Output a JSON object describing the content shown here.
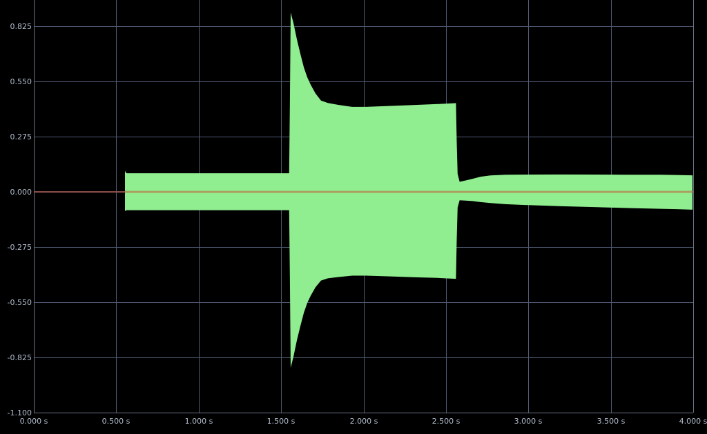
{
  "viewer": {
    "kind": "audio-waveform-display"
  },
  "chart_data": {
    "type": "area",
    "title": "",
    "xlabel": "",
    "ylabel": "",
    "x_unit": "s",
    "xlim": [
      0,
      4
    ],
    "ylim": [
      -1.1,
      0.956
    ],
    "grid": true,
    "legend": "none",
    "x_ticks": [
      {
        "value": 0.0,
        "label": "0.000 s"
      },
      {
        "value": 0.5,
        "label": "0.500 s"
      },
      {
        "value": 1.0,
        "label": "1.000 s"
      },
      {
        "value": 1.5,
        "label": "1.500 s"
      },
      {
        "value": 2.0,
        "label": "2.000 s"
      },
      {
        "value": 2.5,
        "label": "2.500 s"
      },
      {
        "value": 3.0,
        "label": "3.000 s"
      },
      {
        "value": 3.5,
        "label": "3.500 s"
      },
      {
        "value": 4.0,
        "label": "4.000 s"
      }
    ],
    "y_ticks": [
      {
        "value": 0.825,
        "label": "0.825"
      },
      {
        "value": 0.55,
        "label": "0.550"
      },
      {
        "value": 0.275,
        "label": "0.275"
      },
      {
        "value": 0.0,
        "label": "0.000"
      },
      {
        "value": -0.275,
        "label": "-0.275"
      },
      {
        "value": -0.55,
        "label": "-0.550"
      },
      {
        "value": -0.825,
        "label": "-0.825"
      },
      {
        "value": -1.1,
        "label": "-1.100"
      }
    ],
    "zero_line": {
      "value": 0.0
    },
    "envelope_note": "amplitude envelope of waveform: [time_s, top_value, bottom_value]",
    "envelope": [
      [
        0.553,
        0.106,
        -0.096
      ],
      [
        0.558,
        0.096,
        -0.0925
      ],
      [
        0.565,
        0.0928,
        -0.0912
      ],
      [
        1.549,
        0.0928,
        -0.0912
      ],
      [
        1.5535,
        0.45,
        -0.44
      ],
      [
        1.558,
        0.894,
        -0.877
      ],
      [
        1.575,
        0.842,
        -0.822
      ],
      [
        1.596,
        0.76,
        -0.74
      ],
      [
        1.617,
        0.687,
        -0.668
      ],
      [
        1.638,
        0.62,
        -0.602
      ],
      [
        1.659,
        0.57,
        -0.553
      ],
      [
        1.68,
        0.533,
        -0.517
      ],
      [
        1.709,
        0.49,
        -0.475
      ],
      [
        1.742,
        0.455,
        -0.442
      ],
      [
        1.784,
        0.443,
        -0.431
      ],
      [
        1.847,
        0.4335,
        -0.4245
      ],
      [
        1.931,
        0.4235,
        -0.4175
      ],
      [
        2.015,
        0.4235,
        -0.4175
      ],
      [
        2.15,
        0.428,
        -0.421
      ],
      [
        2.3,
        0.4325,
        -0.425
      ],
      [
        2.45,
        0.4375,
        -0.429
      ],
      [
        2.54,
        0.441,
        -0.4325
      ],
      [
        2.561,
        0.4425,
        -0.4335
      ],
      [
        2.5655,
        0.25,
        -0.24
      ],
      [
        2.571,
        0.09,
        -0.078
      ],
      [
        2.583,
        0.05,
        -0.042
      ],
      [
        2.62,
        0.057,
        -0.0435
      ],
      [
        2.66,
        0.065,
        -0.046
      ],
      [
        2.71,
        0.0755,
        -0.051
      ],
      [
        2.77,
        0.082,
        -0.056
      ],
      [
        2.86,
        0.0852,
        -0.0612
      ],
      [
        3.0,
        0.086,
        -0.066
      ],
      [
        3.2,
        0.0865,
        -0.0715
      ],
      [
        3.4,
        0.086,
        -0.0758
      ],
      [
        3.6,
        0.0855,
        -0.0805
      ],
      [
        3.8,
        0.0853,
        -0.0845
      ],
      [
        3.9,
        0.084,
        -0.0862
      ],
      [
        3.996,
        0.0825,
        -0.089
      ]
    ],
    "colors": {
      "background": "#000000",
      "grid": "#515c74",
      "axis": "#6b7588",
      "wave": "#90ee90",
      "zero_line_over_black": "#96544e",
      "zero_line_over_wave": "#ab9f60",
      "tick_label": "#b4bfcf"
    }
  }
}
